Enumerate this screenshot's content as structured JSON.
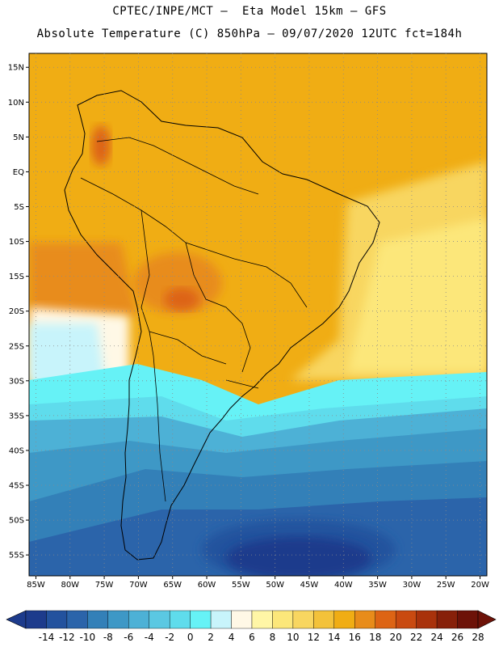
{
  "header": {
    "line1": "CPTEC/INPE/MCT –  Eta Model 15km – GFS",
    "line2": "Absolute Temperature (C) 850hPa – 09/07/2020 12UTC fct=184h"
  },
  "map": {
    "lon_range": [
      -86,
      -19
    ],
    "lat_range": [
      -58,
      17
    ],
    "lat_labels": [
      "15N",
      "10N",
      "5N",
      "EQ",
      "5S",
      "10S",
      "15S",
      "20S",
      "25S",
      "30S",
      "35S",
      "40S",
      "45S",
      "50S",
      "55S"
    ],
    "lat_values": [
      15,
      10,
      5,
      0,
      -5,
      -10,
      -15,
      -20,
      -25,
      -30,
      -35,
      -40,
      -45,
      -50,
      -55
    ],
    "lon_labels": [
      "85W",
      "80W",
      "75W",
      "70W",
      "65W",
      "60W",
      "55W",
      "50W",
      "45W",
      "40W",
      "35W",
      "30W",
      "25W",
      "20W"
    ],
    "lon_values": [
      -85,
      -80,
      -75,
      -70,
      -65,
      -60,
      -55,
      -50,
      -45,
      -40,
      -35,
      -30,
      -25,
      -20
    ]
  },
  "colorbar": {
    "labels": [
      "-14",
      "-12",
      "-10",
      "-8",
      "-6",
      "-4",
      "-2",
      "0",
      "2",
      "4",
      "6",
      "8",
      "10",
      "12",
      "14",
      "16",
      "18",
      "20",
      "22",
      "24",
      "26",
      "28"
    ],
    "colors": [
      "#1d3b8c",
      "#23529e",
      "#2b64aa",
      "#3380b8",
      "#3e98c6",
      "#4db1d6",
      "#5bc8e2",
      "#5fdcec",
      "#66f2f6",
      "#c8f4fb",
      "#fff8e6",
      "#fff6a6",
      "#fce77a",
      "#f8d660",
      "#f3c23a",
      "#f0ad14",
      "#e88c1a",
      "#dd6414",
      "#c94a10",
      "#a9320b",
      "#872009",
      "#6d1208"
    ],
    "unit_note": ""
  }
}
